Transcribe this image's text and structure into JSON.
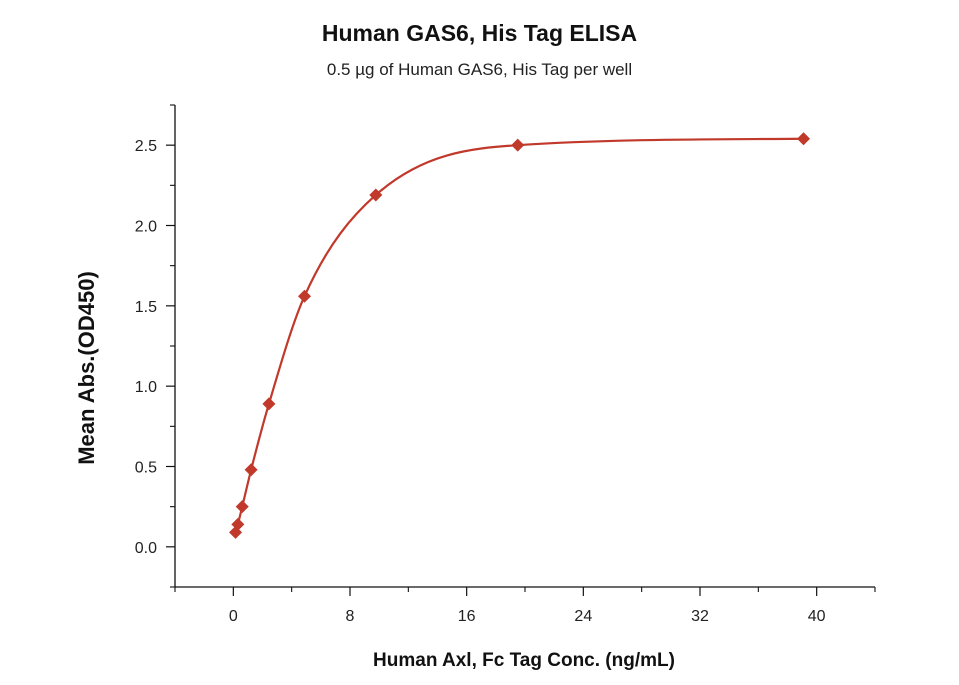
{
  "chart_data": {
    "type": "scatter",
    "title": "Human GAS6, His Tag ELISA",
    "subtitle": "0.5 µg of Human GAS6, His Tag per well",
    "xlabel": "Human Axl, Fc Tag Conc. (ng/mL)",
    "ylabel": "Mean Abs.(OD450)",
    "xlim": [
      -4,
      44
    ],
    "ylim": [
      -0.25,
      2.75
    ],
    "x_ticks": [
      0,
      8,
      16,
      24,
      32,
      40
    ],
    "x_tick_labels": [
      "0",
      "8",
      "16",
      "24",
      "32",
      "40"
    ],
    "y_ticks": [
      0.0,
      0.5,
      1.0,
      1.5,
      2.0,
      2.5
    ],
    "y_tick_labels": [
      "0.0",
      "0.5",
      "1.0",
      "1.5",
      "2.0",
      "2.5"
    ],
    "grid": false,
    "series": [
      {
        "marker": "diamond",
        "color": "#c0392b",
        "points": [
          {
            "x": 0.15,
            "y": 0.09
          },
          {
            "x": 0.31,
            "y": 0.14
          },
          {
            "x": 0.61,
            "y": 0.25
          },
          {
            "x": 1.22,
            "y": 0.48
          },
          {
            "x": 2.44,
            "y": 0.89
          },
          {
            "x": 4.88,
            "y": 1.56
          },
          {
            "x": 9.77,
            "y": 2.19
          },
          {
            "x": 19.5,
            "y": 2.5
          },
          {
            "x": 39.1,
            "y": 2.54
          }
        ],
        "fit": "4PL",
        "fit_color": "#c0392b"
      }
    ]
  }
}
